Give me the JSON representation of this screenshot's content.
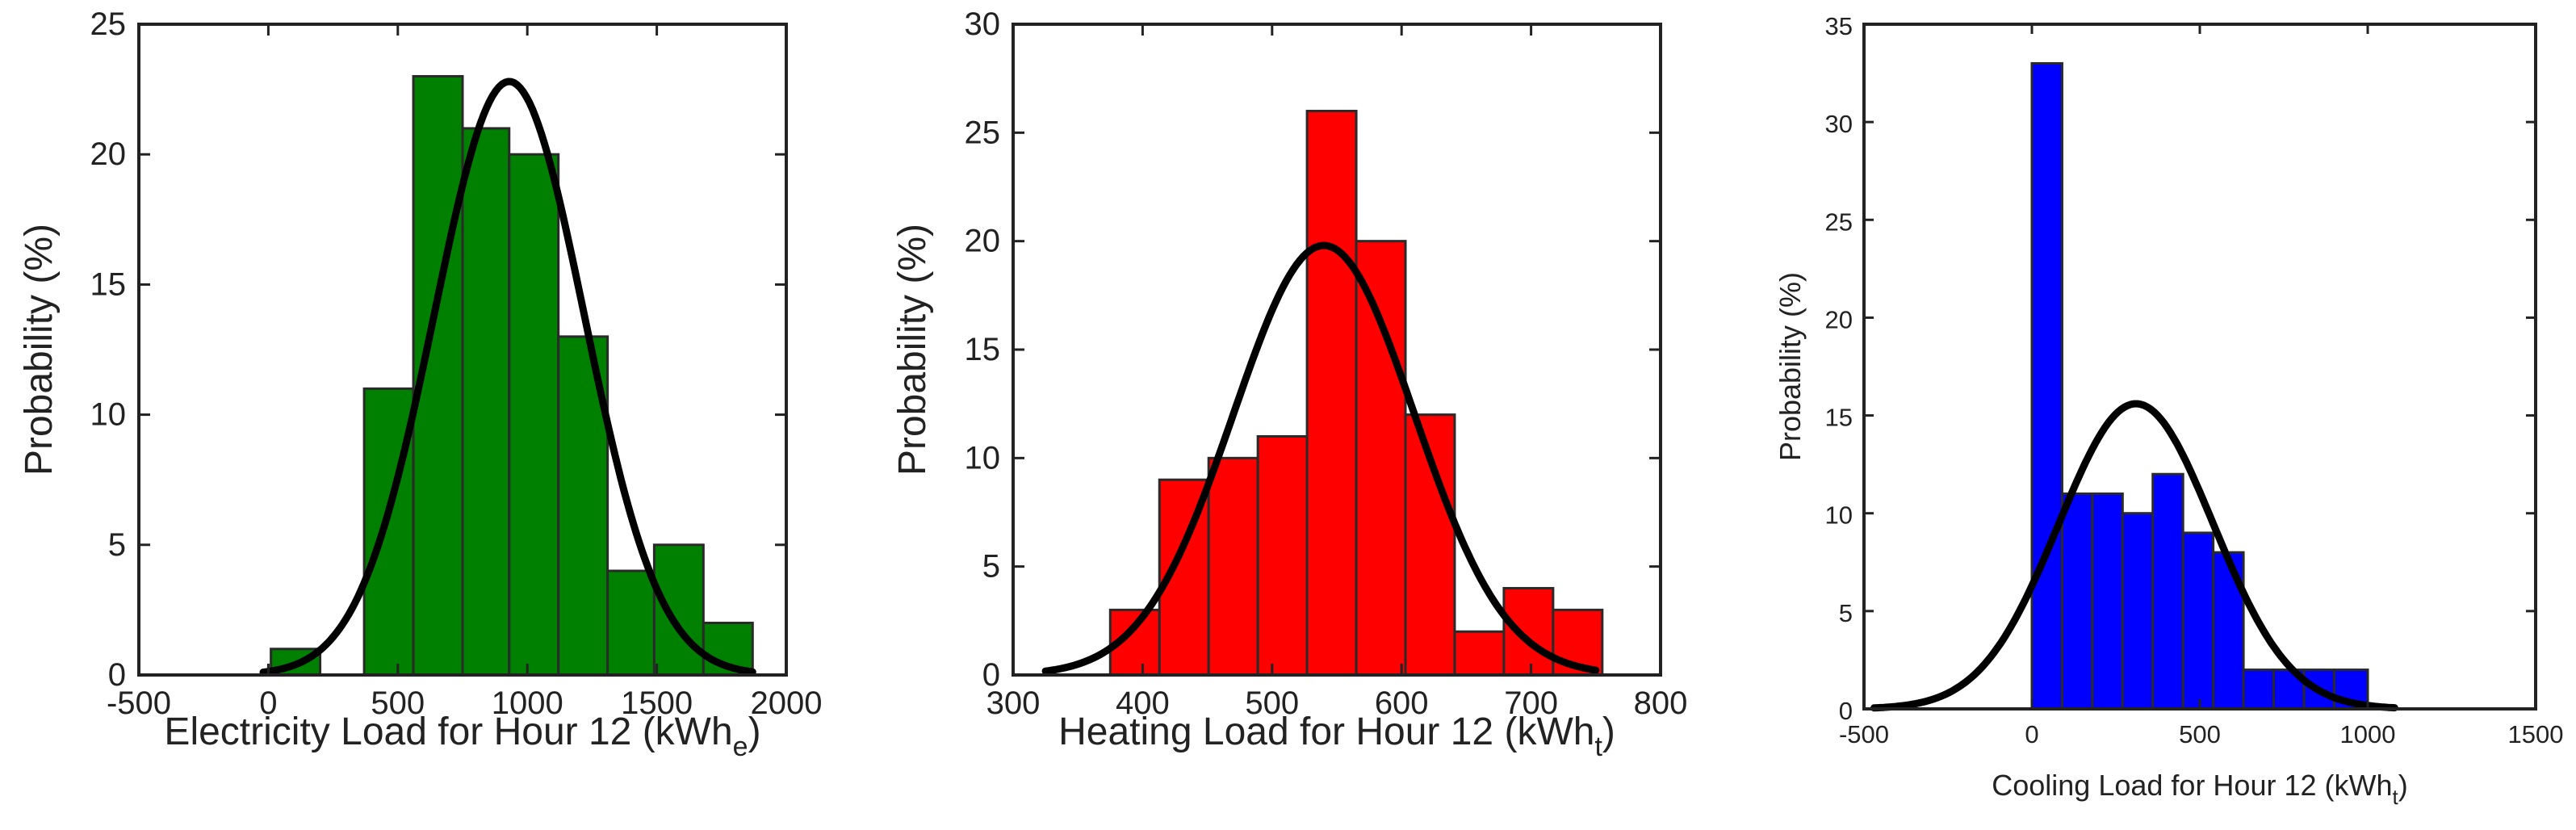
{
  "chart_data": [
    {
      "type": "bar",
      "xlabel": "Electricity Load for Hour 12 (kWh",
      "xlabel_sub": "e",
      "xlabel_end": ")",
      "ylabel": "Probability (%)",
      "xlim": [
        -500,
        2000
      ],
      "ylim": [
        0,
        25
      ],
      "xticks": [
        -500,
        0,
        500,
        1000,
        1500,
        2000
      ],
      "yticks": [
        0,
        5,
        10,
        15,
        20,
        25
      ],
      "bar_color": "#008000",
      "bins": [
        {
          "x0": 10,
          "x1": 200,
          "value": 1
        },
        {
          "x0": 370,
          "x1": 560,
          "value": 11
        },
        {
          "x0": 560,
          "x1": 750,
          "value": 23
        },
        {
          "x0": 750,
          "x1": 930,
          "value": 21
        },
        {
          "x0": 930,
          "x1": 1120,
          "value": 20
        },
        {
          "x0": 1120,
          "x1": 1310,
          "value": 13
        },
        {
          "x0": 1310,
          "x1": 1490,
          "value": 4
        },
        {
          "x0": 1490,
          "x1": 1680,
          "value": 5
        },
        {
          "x0": 1680,
          "x1": 1870,
          "value": 2
        }
      ],
      "fit": {
        "mean": 930,
        "std": 290,
        "peak": 22.8,
        "x_range": [
          -20,
          1870
        ]
      }
    },
    {
      "type": "bar",
      "xlabel": "Heating Load for Hour 12 (kWh",
      "xlabel_sub": "t",
      "xlabel_end": ")",
      "ylabel": "Probability (%)",
      "xlim": [
        300,
        800
      ],
      "ylim": [
        0,
        30
      ],
      "xticks": [
        300,
        400,
        500,
        600,
        700,
        800
      ],
      "yticks": [
        0,
        5,
        10,
        15,
        20,
        25,
        30
      ],
      "bar_color": "#ff0000",
      "bins": [
        {
          "x0": 375,
          "x1": 413,
          "value": 3
        },
        {
          "x0": 413,
          "x1": 451,
          "value": 9
        },
        {
          "x0": 451,
          "x1": 489,
          "value": 10
        },
        {
          "x0": 489,
          "x1": 527,
          "value": 11
        },
        {
          "x0": 527,
          "x1": 565,
          "value": 26
        },
        {
          "x0": 565,
          "x1": 603,
          "value": 20
        },
        {
          "x0": 603,
          "x1": 641,
          "value": 12
        },
        {
          "x0": 641,
          "x1": 679,
          "value": 2
        },
        {
          "x0": 679,
          "x1": 717,
          "value": 4
        },
        {
          "x0": 717,
          "x1": 755,
          "value": 3
        }
      ],
      "fit": {
        "mean": 540,
        "std": 70,
        "peak": 19.8,
        "x_range": [
          325,
          750
        ]
      }
    },
    {
      "type": "bar",
      "xlabel": "Cooling Load for Hour 12 (kWh",
      "xlabel_sub": "t",
      "xlabel_end": ")",
      "ylabel": "Probability (%)",
      "xlim": [
        -500,
        1500
      ],
      "ylim": [
        0,
        35
      ],
      "xticks": [
        -500,
        0,
        500,
        1000,
        1500
      ],
      "yticks": [
        0,
        5,
        10,
        15,
        20,
        25,
        30,
        35
      ],
      "bar_color": "#0000ff",
      "bins": [
        {
          "x0": 0,
          "x1": 90,
          "value": 33
        },
        {
          "x0": 90,
          "x1": 180,
          "value": 11
        },
        {
          "x0": 180,
          "x1": 270,
          "value": 11
        },
        {
          "x0": 270,
          "x1": 360,
          "value": 10
        },
        {
          "x0": 360,
          "x1": 450,
          "value": 12
        },
        {
          "x0": 450,
          "x1": 540,
          "value": 9
        },
        {
          "x0": 540,
          "x1": 630,
          "value": 8
        },
        {
          "x0": 630,
          "x1": 720,
          "value": 2
        },
        {
          "x0": 720,
          "x1": 810,
          "value": 2
        },
        {
          "x0": 810,
          "x1": 900,
          "value": 2
        },
        {
          "x0": 900,
          "x1": 1000,
          "value": 2
        }
      ],
      "fit": {
        "mean": 310,
        "std": 230,
        "peak": 15.6,
        "x_range": [
          -470,
          1080
        ]
      }
    }
  ]
}
